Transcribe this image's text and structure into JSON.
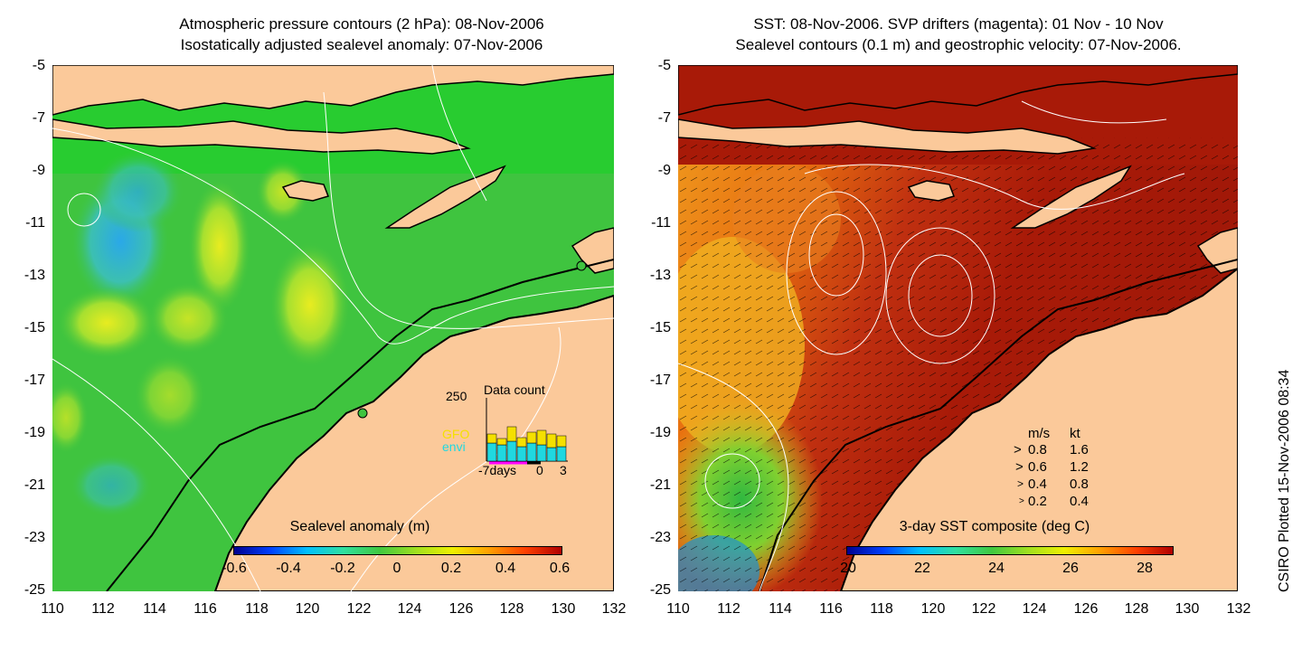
{
  "left": {
    "title_line1": "Atmospheric pressure contours (2 hPa): 08-Nov-2006",
    "title_line2": "Isostatically adjusted sealevel anomaly: 07-Nov-2006",
    "y_ticks": [
      "-5",
      "-7",
      "-9",
      "-11",
      "-13",
      "-15",
      "-17",
      "-19",
      "-21",
      "-23",
      "-25"
    ],
    "x_ticks": [
      "110",
      "112",
      "114",
      "116",
      "118",
      "120",
      "122",
      "124",
      "126",
      "128",
      "130",
      "132"
    ],
    "colorbar": {
      "title": "Sealevel anomaly (m)",
      "labels": [
        "-0.6",
        "-0.4",
        "-0.2",
        "0",
        "0.2",
        "0.4",
        "0.6"
      ]
    },
    "inset": {
      "title": "Data count",
      "max_label": "250",
      "x_labels": [
        "-7days",
        "0",
        "3"
      ],
      "legend_gfo": "GFO",
      "legend_envi": "envi",
      "color_gfo": "#f5e000",
      "color_envi": "#20d8e0"
    }
  },
  "right": {
    "title_line1": "SST: 08-Nov-2006. SVP drifters (magenta): 01 Nov - 10 Nov",
    "title_line2": "Sealevel contours (0.1 m) and geostrophic velocity: 07-Nov-2006.",
    "y_ticks": [
      "-5",
      "-7",
      "-9",
      "-11",
      "-13",
      "-15",
      "-17",
      "-19",
      "-21",
      "-23",
      "-25"
    ],
    "x_ticks": [
      "110",
      "112",
      "114",
      "116",
      "118",
      "120",
      "122",
      "124",
      "126",
      "128",
      "130",
      "132"
    ],
    "colorbar": {
      "title": "3-day SST composite (deg C)",
      "labels": [
        "20",
        "22",
        "24",
        "26",
        "28"
      ]
    },
    "velocity_legend": {
      "header_ms": "m/s",
      "header_kt": "kt",
      "rows": [
        {
          "ms": "0.8",
          "kt": "1.6"
        },
        {
          "ms": "0.6",
          "kt": "1.2"
        },
        {
          "ms": "0.4",
          "kt": "0.8"
        },
        {
          "ms": "0.2",
          "kt": "0.4"
        }
      ]
    }
  },
  "credit": "CSIRO Plotted 15-Nov-2006 08:34",
  "colors": {
    "land": "#fbc99a",
    "ocean_green": "#3fc43f",
    "sst_red": "#b01a08"
  }
}
